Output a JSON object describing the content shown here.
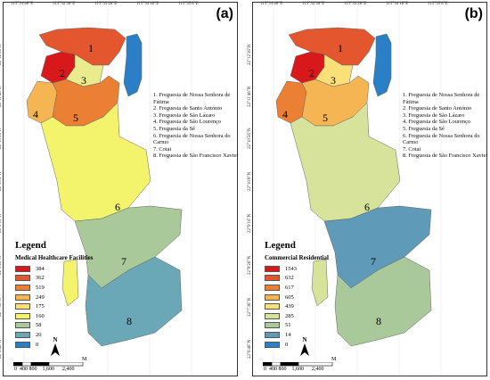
{
  "panels": [
    {
      "letter": "(a)",
      "legend_title": "Legend",
      "legend_subtitle": "Medical Healthcare Facilities",
      "legend": [
        {
          "value": "384",
          "color": "#d7191c"
        },
        {
          "value": "362",
          "color": "#e4572e"
        },
        {
          "value": "519",
          "color": "#eb7f33"
        },
        {
          "value": "249",
          "color": "#f6b553"
        },
        {
          "value": "175",
          "color": "#fbe07a"
        },
        {
          "value": "160",
          "color": "#f3f46c"
        },
        {
          "value": "58",
          "color": "#a9c99a"
        },
        {
          "value": "20",
          "color": "#6aa7b7"
        },
        {
          "value": "0",
          "color": "#2b7fc7"
        }
      ],
      "regions": [
        {
          "id": "1",
          "color": "#e4572e"
        },
        {
          "id": "2",
          "color": "#d7191c"
        },
        {
          "id": "3",
          "color": "#e9eb8c"
        },
        {
          "id": "4",
          "color": "#f6b553"
        },
        {
          "id": "5",
          "color": "#eb7f33"
        },
        {
          "id": "6",
          "color": "#f3f46c"
        },
        {
          "id": "7",
          "color": "#a9c99a"
        },
        {
          "id": "8",
          "color": "#6aa7b7"
        },
        {
          "id": "water",
          "color": "#2b7fc7"
        },
        {
          "id": "islet",
          "color": "#f3f46c"
        }
      ]
    },
    {
      "letter": "(b)",
      "legend_title": "Legend",
      "legend_subtitle": "Commercial Residential",
      "legend": [
        {
          "value": "1543",
          "color": "#d7191c"
        },
        {
          "value": "632",
          "color": "#e4572e"
        },
        {
          "value": "617",
          "color": "#eb7f33"
        },
        {
          "value": "605",
          "color": "#f6b553"
        },
        {
          "value": "439",
          "color": "#fbe07a"
        },
        {
          "value": "285",
          "color": "#d7e39a"
        },
        {
          "value": "51",
          "color": "#a9c99a"
        },
        {
          "value": "14",
          "color": "#5f9bb8"
        },
        {
          "value": "0",
          "color": "#2b7fc7"
        }
      ],
      "regions": [
        {
          "id": "1",
          "color": "#e4572e"
        },
        {
          "id": "2",
          "color": "#d7191c"
        },
        {
          "id": "3",
          "color": "#fbe07a"
        },
        {
          "id": "4",
          "color": "#eb7f33"
        },
        {
          "id": "5",
          "color": "#f6b553"
        },
        {
          "id": "6",
          "color": "#d7e39a"
        },
        {
          "id": "7",
          "color": "#5f9bb8"
        },
        {
          "id": "8",
          "color": "#a9c99a"
        },
        {
          "id": "water",
          "color": "#2b7fc7"
        },
        {
          "id": "islet",
          "color": "#d7e39a"
        }
      ]
    }
  ],
  "parishes": [
    "1. Freguesia de Nossa Senhora de",
    "Fátima",
    "2. Freguesia de Santo António",
    "3. Freguesia de São Lázaro",
    "4. Freguesia de São Lourenço",
    "5. Freguesia da Sé",
    "6. Freguesia de Nossa Senhora do",
    "Carmo",
    "7. Cotai",
    "8. Freguesia de São Francisco Xavier"
  ],
  "top_coords": [
    "113°31'48\"E",
    "113°32'38\"E",
    "113°33'28\"E",
    "113°34'18\"E",
    "113°35'8\"E",
    "113°35'58\"E"
  ],
  "left_coords": [
    "22°12'36\"N",
    "22°11'46\"N",
    "22°10'56\"N",
    "22°10'6\"N",
    "22°9'16\"N",
    "22°8'26\"N",
    "22°7'36\"N",
    "22°6'46\"N"
  ],
  "north_label": "N",
  "scale": {
    "labels": "0  400 800    1,600      2,400",
    "unit": "M"
  }
}
